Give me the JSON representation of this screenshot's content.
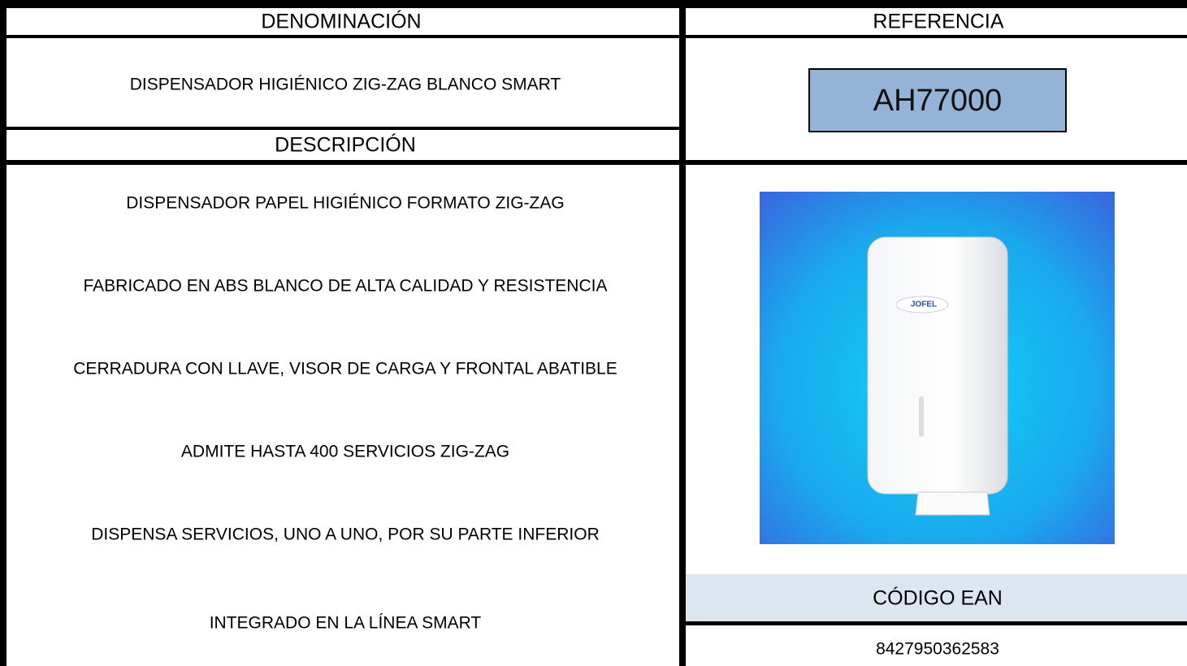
{
  "header": {
    "left": "DENOMINACIÓN",
    "right": "REFERENCIA"
  },
  "name": "DISPENSADOR HIGIÉNICO ZIG-ZAG BLANCO SMART",
  "reference": "AH77000",
  "description_title": "DESCRIPCIÓN",
  "description": [
    "DISPENSADOR PAPEL HIGIÉNICO FORMATO ZIG-ZAG",
    "FABRICADO EN ABS BLANCO DE ALTA CALIDAD Y RESISTENCIA",
    "CERRADURA CON LLAVE, VISOR DE CARGA Y FRONTAL ABATIBLE",
    "ADMITE HASTA 400 SERVICIOS ZIG-ZAG",
    "DISPENSA SERVICIOS, UNO A UNO, POR SU PARTE INFERIOR",
    "INTEGRADO EN LA LÍNEA SMART"
  ],
  "image": {
    "logo": "JOFEL"
  },
  "ean": {
    "title": "CÓDIGO EAN",
    "value": "8427950362583"
  }
}
